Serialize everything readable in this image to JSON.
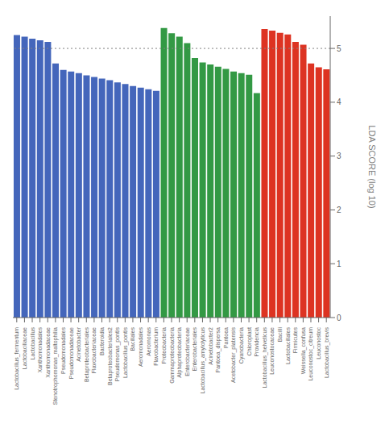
{
  "chart_data": {
    "type": "bar",
    "y_label": "LDA SCORE (log 10)",
    "categories": [
      "Lactobacillus_fermentum",
      "Lactobacillaceae",
      "Lactobacillus",
      "Xanthomonadales",
      "Xanthomonadaceae",
      "Stenotrophomonas_maltophilia",
      "Pseudomonadales",
      "Pseudomonadaceae",
      "Acinetobacter",
      "Betaproteobacteriales",
      "Flavobacteriaceae",
      "Bacteroidia",
      "Betaproteobacteriales2",
      "Pseudomonas_pontis",
      "Lactobacillus_pontis",
      "Bacillales",
      "Aeromonadales",
      "Aeromonas",
      "Flavobacterium",
      "Proteobacteria",
      "Gammaproteobacteria",
      "Alphaproteobacteria",
      "Enterobacteriaceae",
      "Enterobacteriales",
      "Lactobacillus_amylolyticus",
      "Acinetobacter2",
      "Pantoea_dispersa",
      "Pantoea",
      "Acetobacter_platensis",
      "Cyanobacteria",
      "Chloroplast",
      "Providencia",
      "Lactobacillus_helveticus",
      "Leuconostocaceae",
      "Bacilli",
      "Lactobacillales",
      "Firmicutes",
      "Weissella_confusa",
      "Leuconostoc_citreum",
      "Leuconostoc",
      "Lactobacillus_brevis"
    ],
    "values": [
      5.25,
      5.22,
      5.18,
      5.15,
      5.12,
      4.72,
      4.6,
      4.57,
      4.54,
      4.5,
      4.47,
      4.44,
      4.41,
      4.37,
      4.34,
      4.3,
      4.27,
      4.24,
      4.21,
      5.38,
      5.28,
      5.22,
      5.1,
      4.82,
      4.74,
      4.7,
      4.66,
      4.62,
      4.57,
      4.54,
      4.51,
      4.17,
      5.36,
      5.33,
      5.29,
      5.26,
      5.12,
      5.07,
      4.72,
      4.65,
      4.61
    ],
    "colors": [
      "#4466bb",
      "#4466bb",
      "#4466bb",
      "#4466bb",
      "#4466bb",
      "#4466bb",
      "#4466bb",
      "#4466bb",
      "#4466bb",
      "#4466bb",
      "#4466bb",
      "#4466bb",
      "#4466bb",
      "#4466bb",
      "#4466bb",
      "#4466bb",
      "#4466bb",
      "#4466bb",
      "#4466bb",
      "#339944",
      "#339944",
      "#339944",
      "#339944",
      "#339944",
      "#339944",
      "#339944",
      "#339944",
      "#339944",
      "#339944",
      "#339944",
      "#339944",
      "#339944",
      "#dd3322",
      "#dd3322",
      "#dd3322",
      "#dd3322",
      "#dd3322",
      "#dd3322",
      "#dd3322",
      "#dd3322",
      "#dd3322"
    ],
    "reference_line_y": 5.0,
    "ylim": [
      0,
      5.6
    ],
    "yticks": [
      0,
      1,
      2,
      3,
      4,
      5
    ],
    "grid": false
  }
}
